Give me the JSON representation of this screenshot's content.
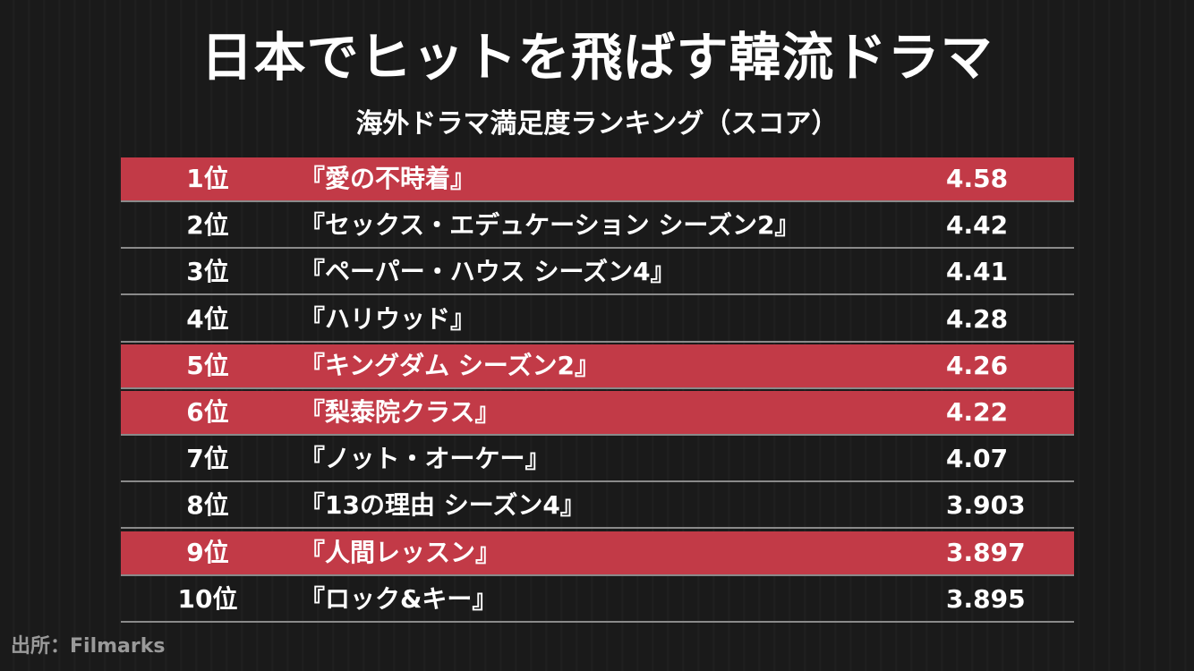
{
  "title": "日本でヒットを飛ばす韓流ドラマ",
  "subtitle": "海外ドラマ満足度ランキング（スコア）",
  "source": "出所：Filmarks",
  "colors": {
    "highlight": "#c23a47",
    "background": "#1b1b1b",
    "text": "#ffffff",
    "divider": "#8a8a8a"
  },
  "chart_data": {
    "type": "table",
    "title": "日本でヒットを飛ばす韓流ドラマ",
    "subtitle": "海外ドラマ満足度ランキング（スコア）",
    "rows": [
      {
        "rank": "1位",
        "name": "『愛の不時着』",
        "score": "4.58",
        "value": 4.58,
        "highlight": true
      },
      {
        "rank": "2位",
        "name": "『セックス・エデュケーション シーズン2』",
        "score": "4.42",
        "value": 4.42,
        "highlight": false
      },
      {
        "rank": "3位",
        "name": "『ペーパー・ハウス シーズン4』",
        "score": "4.41",
        "value": 4.41,
        "highlight": false
      },
      {
        "rank": "4位",
        "name": "『ハリウッド』",
        "score": "4.28",
        "value": 4.28,
        "highlight": false
      },
      {
        "rank": "5位",
        "name": "『キングダム シーズン2』",
        "score": "4.26",
        "value": 4.26,
        "highlight": true
      },
      {
        "rank": "6位",
        "name": "『梨泰院クラス』",
        "score": "4.22",
        "value": 4.22,
        "highlight": true
      },
      {
        "rank": "7位",
        "name": "『ノット・オーケー』",
        "score": "4.07",
        "value": 4.07,
        "highlight": false
      },
      {
        "rank": "8位",
        "name": "『13の理由 シーズン4』",
        "score": "3.903",
        "value": 3.903,
        "highlight": false
      },
      {
        "rank": "9位",
        "name": "『人間レッスン』",
        "score": "3.897",
        "value": 3.897,
        "highlight": true
      },
      {
        "rank": "10位",
        "name": "『ロック&キー』",
        "score": "3.895",
        "value": 3.895,
        "highlight": false
      }
    ]
  }
}
